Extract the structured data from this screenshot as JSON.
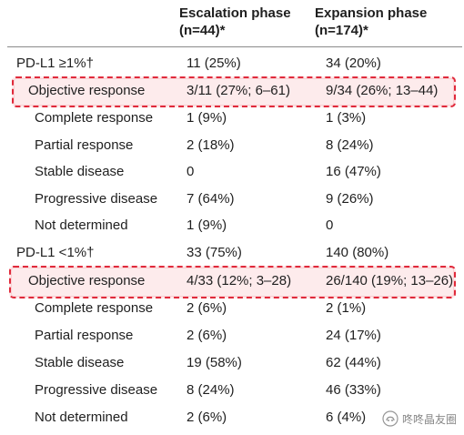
{
  "header": {
    "col1_line1": "Escalation phase",
    "col1_line2": "(n=44)*",
    "col2_line1": "Expansion phase",
    "col2_line2": "(n=174)*"
  },
  "sections": [
    {
      "title": "PD-L1 ≥1%†",
      "esc": "11 (25%)",
      "exp": "34 (20%)",
      "rows": [
        {
          "label": "Objective response",
          "esc": "3/11 (27%; 6–61)",
          "exp": "9/34 (26%; 13–44)",
          "highlight": true
        },
        {
          "label": "Complete response",
          "esc": "1 (9%)",
          "exp": "1 (3%)"
        },
        {
          "label": "Partial response",
          "esc": "2 (18%)",
          "exp": "8 (24%)"
        },
        {
          "label": "Stable disease",
          "esc": "0",
          "exp": "16 (47%)"
        },
        {
          "label": "Progressive disease",
          "esc": "7 (64%)",
          "exp": "9 (26%)"
        },
        {
          "label": "Not determined",
          "esc": "1 (9%)",
          "exp": "0"
        }
      ]
    },
    {
      "title": "PD-L1 <1%†",
      "esc": "33 (75%)",
      "exp": "140 (80%)",
      "rows": [
        {
          "label": "Objective response",
          "esc": "4/33 (12%; 3–28)",
          "exp": "26/140 (19%; 13–26)",
          "highlight": true
        },
        {
          "label": "Complete response",
          "esc": "2 (6%)",
          "exp": "2 (1%)"
        },
        {
          "label": "Partial response",
          "esc": "2 (6%)",
          "exp": "24 (17%)"
        },
        {
          "label": "Stable disease",
          "esc": "19 (58%)",
          "exp": "62 (44%)"
        },
        {
          "label": "Progressive disease",
          "esc": "8 (24%)",
          "exp": "46 (33%)"
        },
        {
          "label": "Not determined",
          "esc": "2 (6%)",
          "exp": "6 (4%)"
        }
      ]
    }
  ],
  "watermark": {
    "text": "咚咚晶友圈",
    "icon": "wechat-channel-icon"
  },
  "colors": {
    "highlight_border": "#e02a3b",
    "text": "#1f1f1f",
    "rule": "#8a8a8a"
  }
}
